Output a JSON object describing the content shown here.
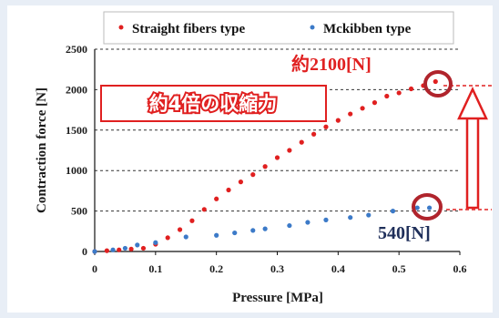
{
  "chart_data": {
    "type": "scatter",
    "xlabel": "Pressure [MPa]",
    "ylabel": "Contraction force [N]",
    "xlim": [
      0,
      0.6
    ],
    "ylim": [
      0,
      2500
    ],
    "x_ticks": [
      "0",
      "0.1",
      "0.2",
      "0.3",
      "0.4",
      "0.5",
      "0.6"
    ],
    "y_ticks": [
      "0",
      "500",
      "1000",
      "1500",
      "2000",
      "2500"
    ],
    "grid": "horizontal dashed",
    "legend_position": "top",
    "series": [
      {
        "name": "Straight fibers type",
        "color": "#e02020",
        "points": [
          [
            0.0,
            0
          ],
          [
            0.02,
            10
          ],
          [
            0.04,
            20
          ],
          [
            0.06,
            30
          ],
          [
            0.08,
            40
          ],
          [
            0.1,
            90
          ],
          [
            0.12,
            170
          ],
          [
            0.14,
            270
          ],
          [
            0.16,
            380
          ],
          [
            0.18,
            520
          ],
          [
            0.2,
            650
          ],
          [
            0.22,
            760
          ],
          [
            0.24,
            860
          ],
          [
            0.26,
            950
          ],
          [
            0.28,
            1050
          ],
          [
            0.3,
            1160
          ],
          [
            0.32,
            1250
          ],
          [
            0.34,
            1350
          ],
          [
            0.36,
            1450
          ],
          [
            0.38,
            1540
          ],
          [
            0.4,
            1620
          ],
          [
            0.42,
            1700
          ],
          [
            0.44,
            1770
          ],
          [
            0.46,
            1840
          ],
          [
            0.48,
            1920
          ],
          [
            0.5,
            1960
          ],
          [
            0.52,
            2010
          ],
          [
            0.54,
            2050
          ],
          [
            0.56,
            2100
          ]
        ]
      },
      {
        "name": "Mckibben type",
        "color": "#3c7ac8",
        "points": [
          [
            0.0,
            0
          ],
          [
            0.03,
            20
          ],
          [
            0.05,
            40
          ],
          [
            0.07,
            80
          ],
          [
            0.1,
            110
          ],
          [
            0.15,
            180
          ],
          [
            0.2,
            200
          ],
          [
            0.23,
            230
          ],
          [
            0.26,
            260
          ],
          [
            0.28,
            280
          ],
          [
            0.32,
            320
          ],
          [
            0.35,
            360
          ],
          [
            0.38,
            390
          ],
          [
            0.42,
            420
          ],
          [
            0.45,
            450
          ],
          [
            0.49,
            500
          ],
          [
            0.53,
            540
          ],
          [
            0.55,
            540
          ]
        ]
      }
    ],
    "annotations": {
      "top_value": "約2100[N]",
      "bottom_value": "540[N]",
      "ratio_label": "約4倍の収縮力"
    }
  },
  "colors": {
    "annotation_red": "#e02020",
    "annotation_navy": "#1f2f5a",
    "circle_red": "#b0242c",
    "grid": "#333333"
  }
}
